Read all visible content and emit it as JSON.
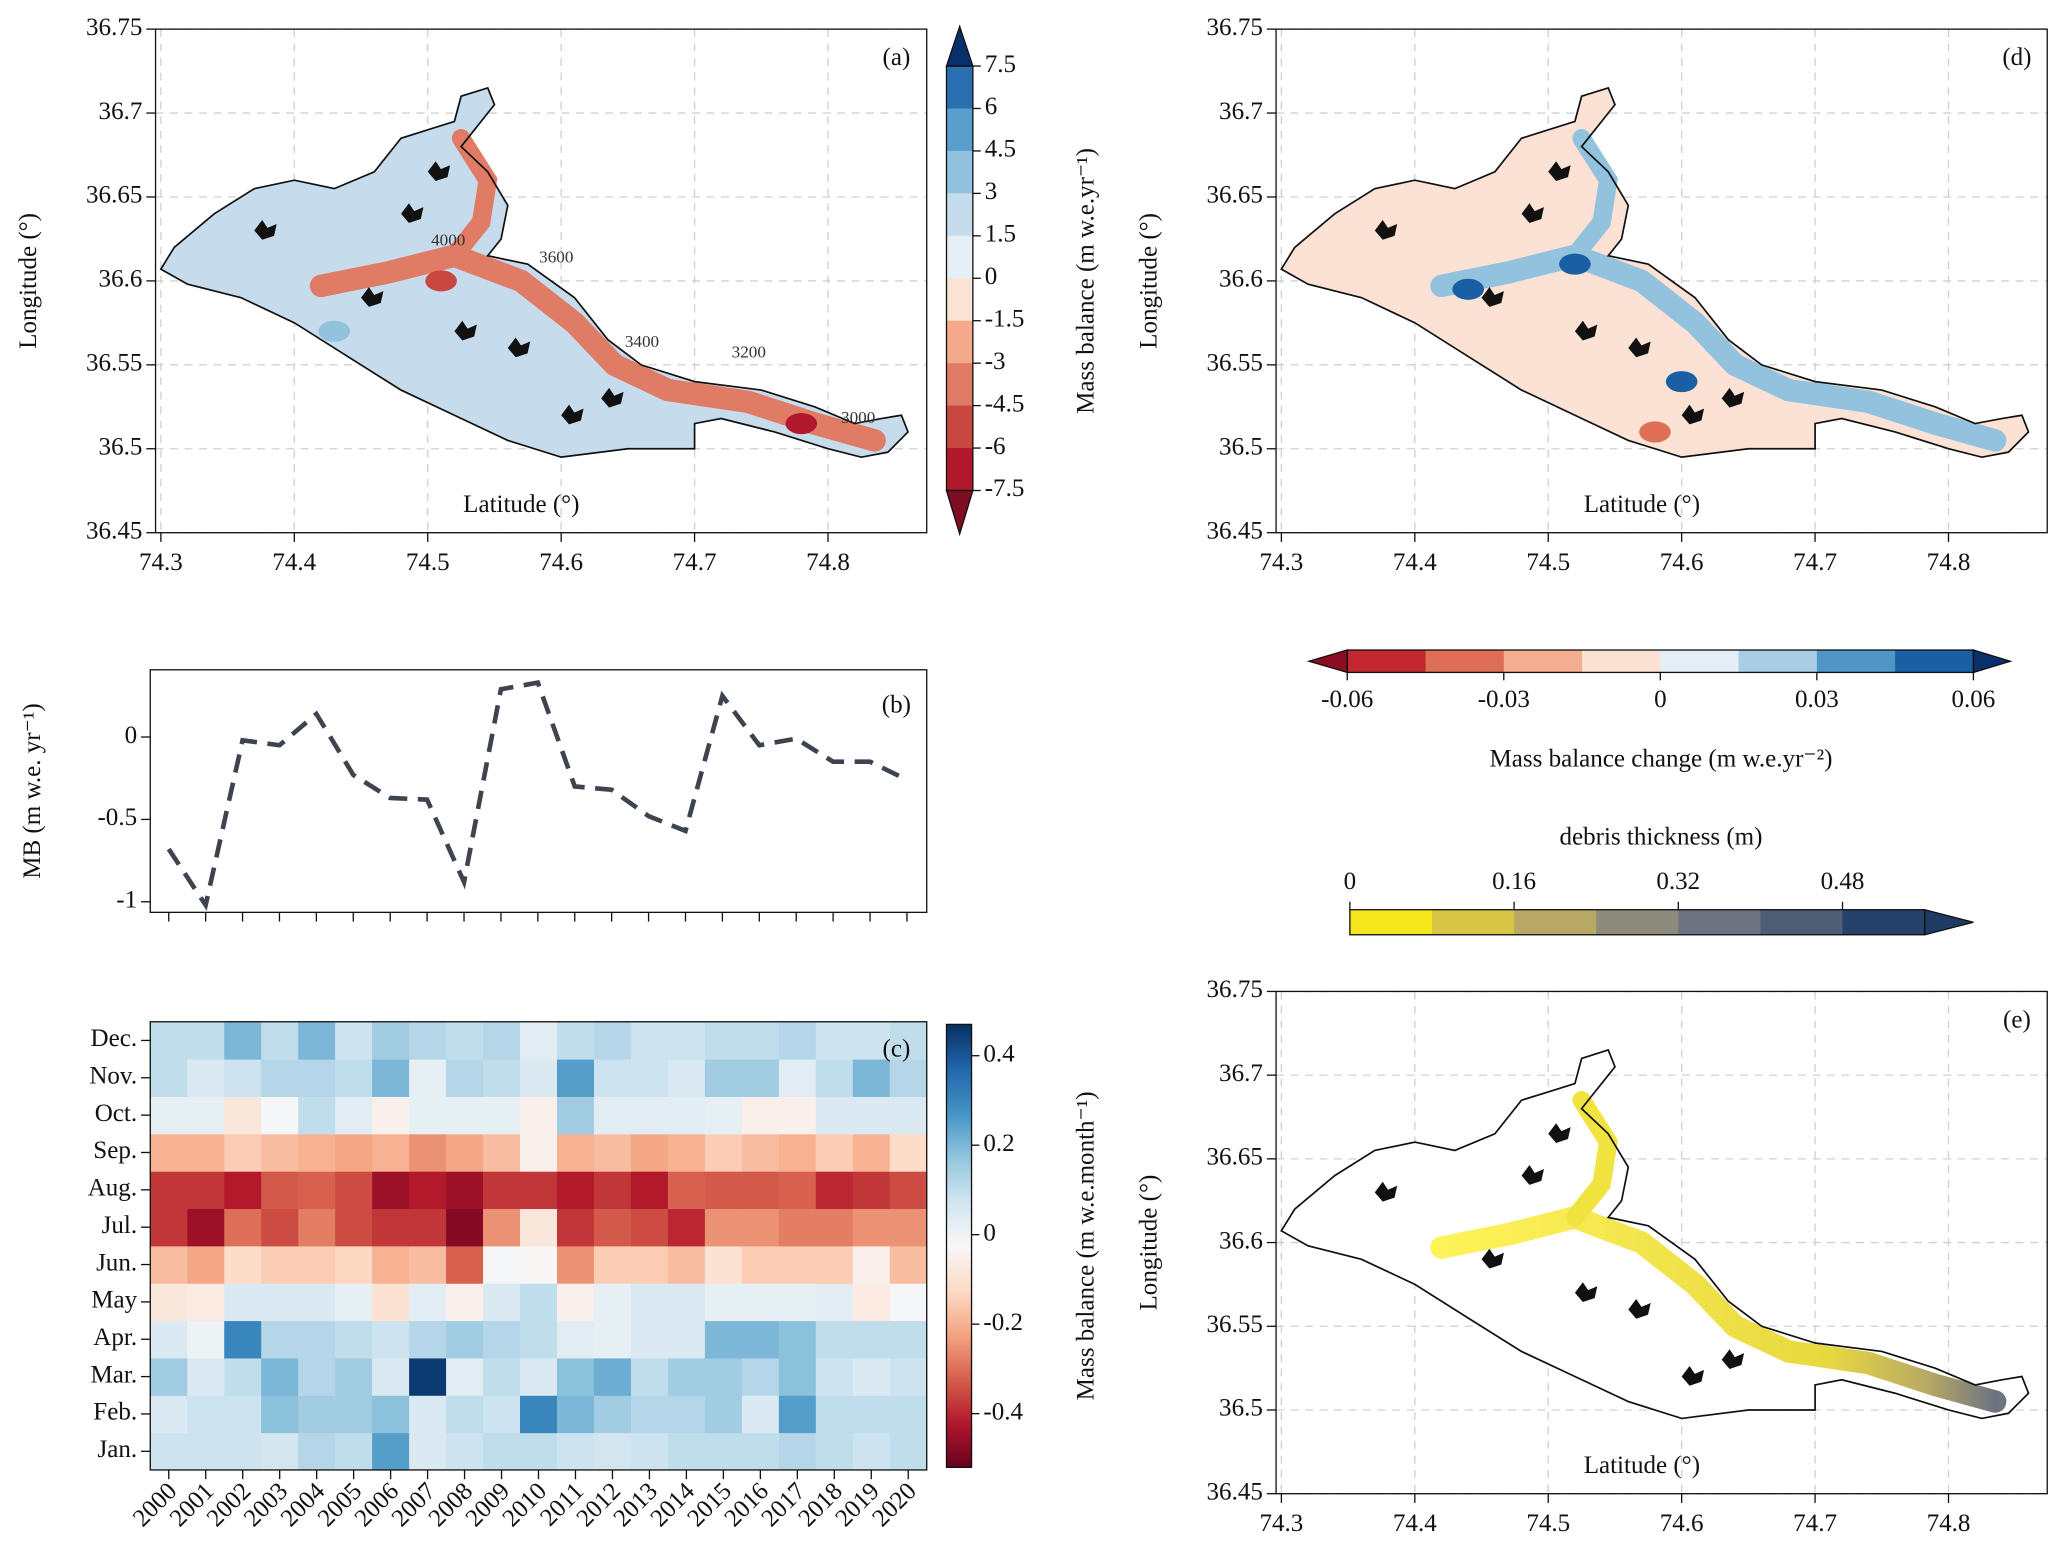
{
  "chart_data": [
    {
      "type": "map",
      "panel_label": "(a)",
      "xlabel": "Latitude (°)",
      "ylabel": "Longitude (°)",
      "xlim": [
        74.296,
        74.874
      ],
      "ylim": [
        36.45,
        36.75
      ],
      "xticks": [
        74.3,
        74.4,
        74.5,
        74.6,
        74.7,
        74.8
      ],
      "yticks": [
        36.45,
        36.5,
        36.55,
        36.6,
        36.65,
        36.7,
        36.75
      ],
      "grid": true,
      "contour_labels": [
        "4000",
        "3600",
        "3400",
        "3200",
        "3000"
      ],
      "colorbar": {
        "label": "Mass balance (m w.e.yr⁻¹)",
        "lim": [
          -7.5,
          7.5
        ],
        "ticks": [
          -7.5,
          -6,
          -4.5,
          -3,
          -1.5,
          0,
          1.5,
          3,
          4.5,
          6,
          7.5
        ],
        "colors": [
          "#b2182b",
          "#c94741",
          "#e07b66",
          "#f4a98a",
          "#fbe3d6",
          "#e6eff6",
          "#c4dcec",
          "#92c2de",
          "#5a9ecd",
          "#2a6fb0"
        ],
        "under": "#7f0d24",
        "over": "#08306b"
      }
    },
    {
      "type": "line",
      "panel_label": "(b)",
      "ylabel": "MB (m w.e. yr⁻¹)",
      "color": "#3d4450",
      "values": [
        -0.68,
        -1.02,
        -0.02,
        -0.05,
        0.14,
        -0.23,
        -0.37,
        -0.38,
        -0.88,
        0.29,
        0.33,
        -0.3,
        -0.32,
        -0.48,
        -0.57,
        0.25,
        -0.05,
        -0.01,
        -0.15,
        -0.15,
        -0.26
      ],
      "ylim": [
        -1.064,
        0.408
      ],
      "yticks": [
        -1,
        -0.5,
        0
      ]
    },
    {
      "type": "heatmap",
      "panel_label": "(c)",
      "x": [
        "2000",
        "2001",
        "2002",
        "2003",
        "2004",
        "2005",
        "2006",
        "2007",
        "2008",
        "2009",
        "2010",
        "2011",
        "2012",
        "2013",
        "2014",
        "2015",
        "2016",
        "2017",
        "2018",
        "2019",
        "2020"
      ],
      "y": [
        "Jan.",
        "Feb.",
        "Mar.",
        "Apr.",
        "May",
        "Jun.",
        "Jul.",
        "Aug.",
        "Sep.",
        "Oct.",
        "Nov.",
        "Dec."
      ],
      "values": [
        [
          0.08,
          0.08,
          0.08,
          0.07,
          0.12,
          0.1,
          0.25,
          0.05,
          0.08,
          0.1,
          0.1,
          0.08,
          0.07,
          0.08,
          0.1,
          0.1,
          0.1,
          0.12,
          0.1,
          0.08,
          0.1
        ],
        [
          0.05,
          0.08,
          0.08,
          0.18,
          0.15,
          0.15,
          0.18,
          0.05,
          0.1,
          0.08,
          0.3,
          0.2,
          0.15,
          0.12,
          0.12,
          0.15,
          0.05,
          0.25,
          0.1,
          0.1,
          0.1
        ],
        [
          0.15,
          0.05,
          0.1,
          0.2,
          0.12,
          0.15,
          0.05,
          0.45,
          0.03,
          0.1,
          0.05,
          0.18,
          0.22,
          0.1,
          0.15,
          0.15,
          0.12,
          0.18,
          0.08,
          0.05,
          0.08
        ],
        [
          0.05,
          0.0,
          0.3,
          0.12,
          0.12,
          0.1,
          0.08,
          0.12,
          0.15,
          0.12,
          0.1,
          0.03,
          0.02,
          0.05,
          0.05,
          0.2,
          0.2,
          0.18,
          0.1,
          0.1,
          0.1
        ],
        [
          -0.08,
          -0.07,
          0.05,
          0.05,
          0.05,
          0.02,
          -0.1,
          0.03,
          -0.05,
          0.05,
          0.1,
          -0.05,
          0.02,
          0.05,
          0.05,
          0.02,
          0.02,
          0.02,
          0.03,
          -0.07,
          -0.02
        ],
        [
          -0.18,
          -0.22,
          -0.12,
          -0.15,
          -0.15,
          -0.13,
          -0.2,
          -0.18,
          -0.32,
          -0.02,
          -0.03,
          -0.25,
          -0.15,
          -0.15,
          -0.18,
          -0.1,
          -0.15,
          -0.15,
          -0.15,
          -0.05,
          -0.18
        ],
        [
          -0.38,
          -0.45,
          -0.3,
          -0.35,
          -0.28,
          -0.35,
          -0.38,
          -0.38,
          -0.48,
          -0.25,
          -0.08,
          -0.38,
          -0.33,
          -0.35,
          -0.4,
          -0.25,
          -0.25,
          -0.28,
          -0.28,
          -0.25,
          -0.25
        ],
        [
          -0.38,
          -0.38,
          -0.42,
          -0.33,
          -0.32,
          -0.35,
          -0.45,
          -0.42,
          -0.45,
          -0.38,
          -0.38,
          -0.42,
          -0.38,
          -0.42,
          -0.32,
          -0.33,
          -0.33,
          -0.32,
          -0.4,
          -0.38,
          -0.35
        ],
        [
          -0.2,
          -0.2,
          -0.15,
          -0.18,
          -0.2,
          -0.22,
          -0.2,
          -0.25,
          -0.22,
          -0.18,
          -0.05,
          -0.2,
          -0.18,
          -0.22,
          -0.2,
          -0.15,
          -0.18,
          -0.2,
          -0.15,
          -0.2,
          -0.12
        ],
        [
          0.02,
          0.02,
          -0.08,
          -0.02,
          0.1,
          0.03,
          -0.05,
          0.02,
          0.02,
          0.02,
          -0.05,
          0.15,
          0.03,
          0.03,
          0.03,
          0.02,
          -0.05,
          -0.05,
          0.05,
          0.05,
          0.05
        ],
        [
          0.1,
          0.05,
          0.08,
          0.12,
          0.12,
          0.1,
          0.2,
          0.02,
          0.12,
          0.1,
          0.05,
          0.25,
          0.08,
          0.08,
          0.05,
          0.15,
          0.15,
          0.03,
          0.1,
          0.2,
          0.12
        ],
        [
          0.1,
          0.1,
          0.2,
          0.1,
          0.2,
          0.08,
          0.15,
          0.12,
          0.1,
          0.12,
          0.03,
          0.1,
          0.12,
          0.08,
          0.08,
          0.1,
          0.1,
          0.12,
          0.08,
          0.08,
          0.1
        ]
      ],
      "colorbar": {
        "label": "Mass balance (m w.e.month⁻¹)",
        "lim": [
          -0.52,
          0.47
        ],
        "ticks": [
          -0.4,
          -0.2,
          0,
          0.2,
          0.4
        ],
        "colormap": [
          "#67001f",
          "#b2182b",
          "#d6604d",
          "#f4a582",
          "#fddbc7",
          "#f7f7f7",
          "#d1e5f0",
          "#92c5de",
          "#4393c3",
          "#2166ac",
          "#053061"
        ]
      }
    },
    {
      "type": "map",
      "panel_label": "(d)",
      "xlabel": "Latitude (°)",
      "ylabel": "Longitude (°)",
      "xlim": [
        74.296,
        74.874
      ],
      "ylim": [
        36.45,
        36.75
      ],
      "xticks": [
        74.3,
        74.4,
        74.5,
        74.6,
        74.7,
        74.8
      ],
      "yticks": [
        36.45,
        36.5,
        36.55,
        36.6,
        36.65,
        36.7,
        36.75
      ],
      "grid": true,
      "colorbar": {
        "label": "Mass balance change (m w.e.yr⁻²)",
        "lim": [
          -0.06,
          0.06
        ],
        "ticks": [
          -0.06,
          -0.03,
          0,
          0.03,
          0.06
        ],
        "colors": [
          "#c0282d",
          "#de6e55",
          "#f4ad8e",
          "#fbe2d4",
          "#e3eef5",
          "#a9cde4",
          "#4f96c7",
          "#1a5ea3"
        ],
        "under": "#8a0d22",
        "over": "#08306b"
      }
    },
    {
      "type": "map",
      "panel_label": "(e)",
      "xlabel": "Latitude (°)",
      "ylabel": "Longitude (°)",
      "xlim": [
        74.296,
        74.874
      ],
      "ylim": [
        36.45,
        36.75
      ],
      "xticks": [
        74.3,
        74.4,
        74.5,
        74.6,
        74.7,
        74.8
      ],
      "yticks": [
        36.45,
        36.5,
        36.55,
        36.6,
        36.65,
        36.7,
        36.75
      ],
      "grid": true,
      "colorbar": {
        "label": "debris thickness (m)",
        "lim": [
          0,
          0.56
        ],
        "ticks": [
          0,
          0.16,
          0.32,
          0.48
        ],
        "colors": [
          "#f5e61e",
          "#d8c445",
          "#b7a866",
          "#8d8c7c",
          "#6d7380",
          "#4f5d75",
          "#25416a"
        ],
        "over": "#1f3a63"
      }
    }
  ]
}
